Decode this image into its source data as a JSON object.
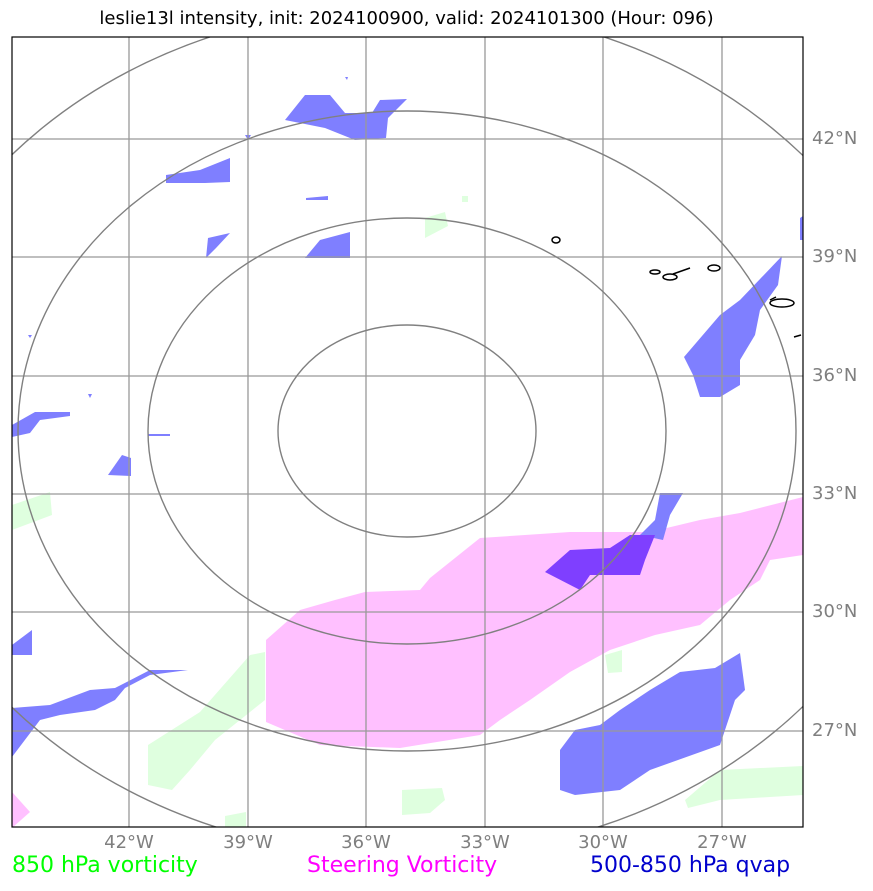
{
  "title": "leslie13l intensity, init: 2024100900, valid: 2024101300 (Hour: 096)",
  "map": {
    "lat_labels": [
      "42°N",
      "39°N",
      "36°N",
      "33°N",
      "30°N",
      "27°N"
    ],
    "lon_labels": [
      "42°W",
      "39°W",
      "36°W",
      "33°W",
      "30°W",
      "27°W"
    ],
    "range_rings": 4
  },
  "legend": {
    "vorticity_850": {
      "label": "850 hPa vorticity",
      "color": "#00ff00"
    },
    "steering_vorticity": {
      "label": "Steering Vorticity",
      "color": "#ff00ff"
    },
    "qvap_500_850": {
      "label": "500-850 hPa qvap",
      "color": "#0000cc"
    }
  },
  "colors": {
    "vorticity_fill": "#dfffdf",
    "steering_fill": "#ffc0ff",
    "qvap_fill": "#7f7fff",
    "overlap_fill": "#7f3fff",
    "grid": "#999999",
    "ring": "#808080"
  }
}
